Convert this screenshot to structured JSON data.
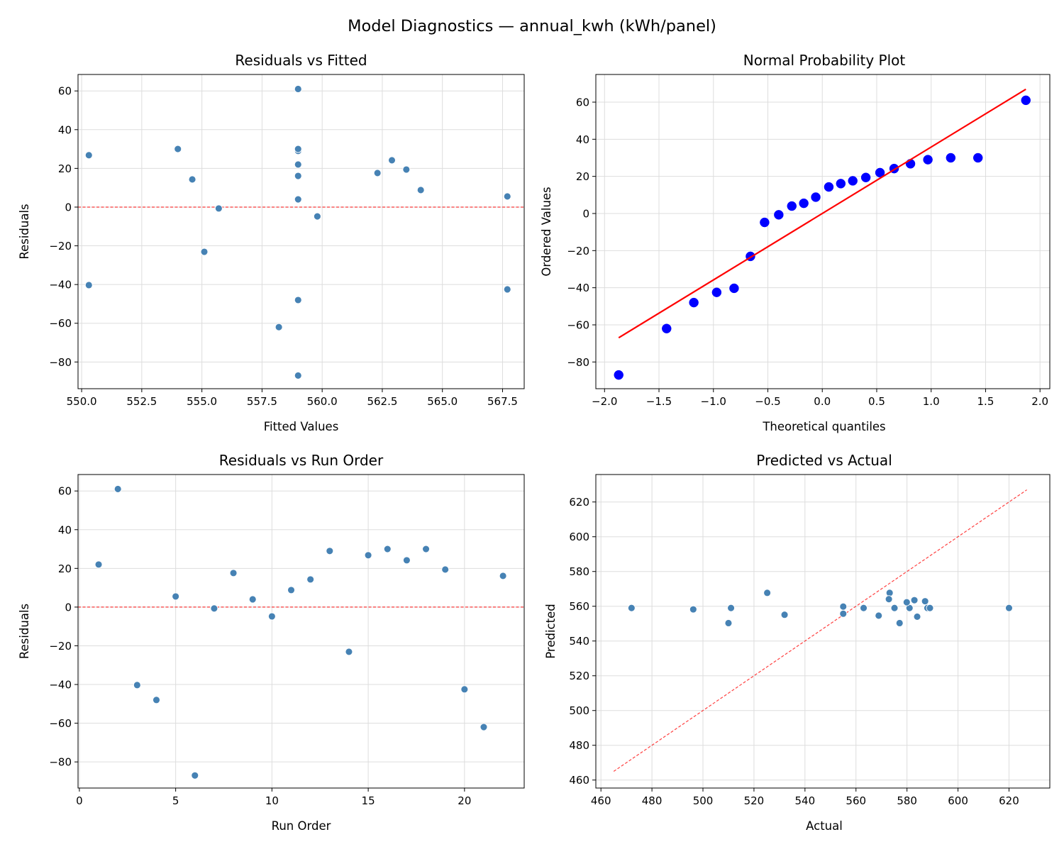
{
  "suptitle": "Model Diagnostics — annual_kwh (kWh/panel)",
  "colors": {
    "point": "#4682b4",
    "qq_point": "#0000ff",
    "ref_line": "#ff0000",
    "grid": "#dddddd"
  },
  "chart_data": [
    {
      "type": "scatter",
      "title": "Residuals vs Fitted",
      "xlabel": "Fitted Values",
      "ylabel": "Residuals",
      "xlim": [
        549.85,
        568.4
      ],
      "ylim": [
        -93.8,
        68.5
      ],
      "xticks": [
        550,
        552.5,
        555,
        557.5,
        560,
        562.5,
        565,
        567.5
      ],
      "xtick_labels": [
        "550.0",
        "552.5",
        "555.0",
        "557.5",
        "560.0",
        "562.5",
        "565.0",
        "567.5"
      ],
      "yticks": [
        -80,
        -60,
        -40,
        -20,
        0,
        20,
        40,
        60
      ],
      "ytick_labels": [
        "−80",
        "−60",
        "−40",
        "−20",
        "0",
        "20",
        "40",
        "60"
      ],
      "grid": true,
      "x": [
        559.0,
        559.0,
        550.3,
        559.0,
        567.7,
        559.0,
        555.7,
        562.3,
        559.0,
        559.8,
        564.1,
        554.6,
        559.0,
        555.1,
        550.3,
        559.0,
        562.9,
        554.0,
        563.5,
        567.7,
        558.2,
        559.0
      ],
      "y": [
        22.0,
        61.0,
        -40.3,
        -48.0,
        5.5,
        -87.0,
        -0.7,
        17.6,
        4.0,
        -4.8,
        8.8,
        14.3,
        29.0,
        -23.1,
        26.8,
        30.0,
        24.2,
        30.0,
        19.4,
        -42.5,
        -62.0,
        16.1
      ],
      "reference_line": {
        "type": "horizontal",
        "y": 0,
        "style": "dashed"
      }
    },
    {
      "type": "scatter",
      "title": "Normal Probability Plot",
      "xlabel": "Theoretical quantiles",
      "ylabel": "Ordered Values",
      "xlim": [
        -2.08,
        2.09
      ],
      "ylim": [
        -94.4,
        74.9
      ],
      "xticks": [
        -2,
        -1.5,
        -1,
        -0.5,
        0,
        0.5,
        1,
        1.5,
        2
      ],
      "xtick_labels": [
        "−2.0",
        "−1.5",
        "−1.0",
        "−0.5",
        "0.0",
        "0.5",
        "1.0",
        "1.5",
        "2.0"
      ],
      "yticks": [
        -80,
        -60,
        -40,
        -20,
        0,
        20,
        40,
        60
      ],
      "ytick_labels": [
        "−80",
        "−60",
        "−40",
        "−20",
        "0",
        "20",
        "40",
        "60"
      ],
      "grid": true,
      "x": [
        -1.87,
        -1.43,
        -1.18,
        -0.97,
        -0.81,
        -0.66,
        -0.53,
        -0.4,
        -0.28,
        -0.17,
        -0.06,
        0.06,
        0.17,
        0.28,
        0.4,
        0.53,
        0.66,
        0.81,
        0.97,
        1.18,
        1.43,
        1.87
      ],
      "y": [
        -87.0,
        -62.0,
        -48.0,
        -42.5,
        -40.3,
        -23.1,
        -4.8,
        -0.7,
        4.0,
        5.5,
        8.8,
        14.3,
        16.1,
        17.6,
        19.4,
        22.0,
        24.2,
        26.8,
        29.0,
        30.0,
        30.0,
        61.0
      ],
      "reference_line": {
        "type": "fit",
        "slope": 35.8,
        "intercept": 0.0,
        "x_range": [
          -1.87,
          1.87
        ],
        "style": "solid"
      }
    },
    {
      "type": "scatter",
      "title": "Residuals vs Run Order",
      "xlabel": "Run Order",
      "ylabel": "Residuals",
      "xlim": [
        -0.07,
        23.1
      ],
      "ylim": [
        -93.5,
        68.5
      ],
      "xticks": [
        0,
        5,
        10,
        15,
        20
      ],
      "xtick_labels": [
        "0",
        "5",
        "10",
        "15",
        "20"
      ],
      "yticks": [
        -80,
        -60,
        -40,
        -20,
        0,
        20,
        40,
        60
      ],
      "ytick_labels": [
        "−80",
        "−60",
        "−40",
        "−20",
        "0",
        "20",
        "40",
        "60"
      ],
      "grid": true,
      "x": [
        1,
        2,
        3,
        4,
        5,
        6,
        7,
        8,
        9,
        10,
        11,
        12,
        13,
        14,
        15,
        16,
        17,
        18,
        19,
        20,
        21,
        22
      ],
      "y": [
        22.0,
        61.0,
        -40.3,
        -48.0,
        5.5,
        -87.0,
        -0.7,
        17.6,
        4.0,
        -4.8,
        8.8,
        14.3,
        29.0,
        -23.1,
        26.8,
        30.0,
        24.2,
        30.0,
        19.4,
        -42.5,
        -62.0,
        16.1
      ],
      "reference_line": {
        "type": "horizontal",
        "y": 0,
        "style": "dashed"
      }
    },
    {
      "type": "scatter",
      "title": "Predicted vs Actual",
      "xlabel": "Actual",
      "ylabel": "Predicted",
      "xlim": [
        458,
        636
      ],
      "ylim": [
        455.4,
        635.8
      ],
      "xticks": [
        460,
        480,
        500,
        520,
        540,
        560,
        580,
        600,
        620
      ],
      "xtick_labels": [
        "460",
        "480",
        "500",
        "520",
        "540",
        "560",
        "580",
        "600",
        "620"
      ],
      "yticks": [
        460,
        480,
        500,
        520,
        540,
        560,
        580,
        600,
        620
      ],
      "ytick_labels": [
        "460",
        "480",
        "500",
        "520",
        "540",
        "560",
        "580",
        "600",
        "620"
      ],
      "grid": true,
      "x": [
        581.0,
        620.0,
        510.0,
        511.0,
        573.2,
        472.0,
        555.0,
        579.9,
        563.0,
        555.0,
        572.9,
        568.9,
        588.0,
        532.0,
        577.1,
        589.0,
        587.1,
        584.0,
        582.9,
        525.2,
        496.2,
        575.1
      ],
      "y": [
        559.0,
        559.0,
        550.3,
        559.0,
        567.7,
        559.0,
        555.7,
        562.3,
        559.0,
        559.8,
        564.1,
        554.6,
        559.0,
        555.1,
        550.3,
        559.0,
        562.9,
        554.0,
        563.5,
        567.7,
        558.2,
        559.0
      ],
      "reference_line": {
        "type": "identity",
        "x_range": [
          465,
          627
        ],
        "style": "dashed"
      }
    }
  ]
}
